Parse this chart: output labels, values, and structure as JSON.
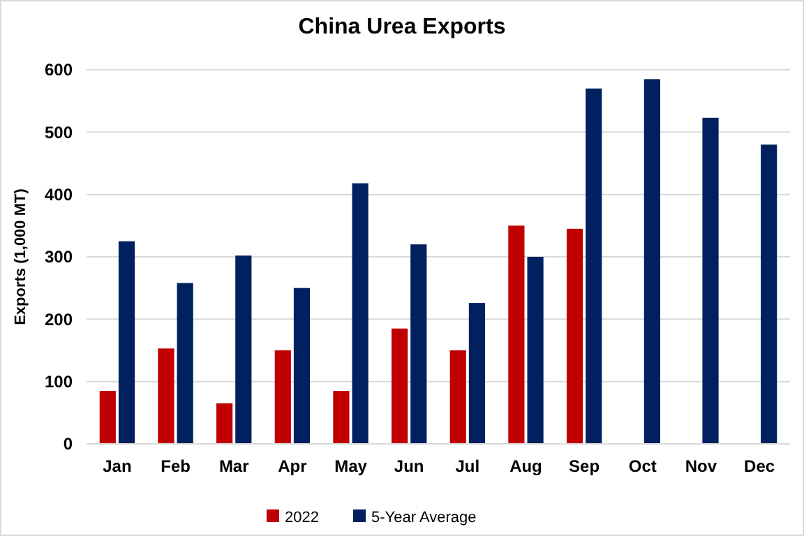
{
  "chart_data": {
    "type": "bar",
    "title": "China Urea Exports",
    "ylabel": "Exports (1,000 MT)",
    "categories": [
      "Jan",
      "Feb",
      "Mar",
      "Apr",
      "May",
      "Jun",
      "Jul",
      "Aug",
      "Sep",
      "Oct",
      "Nov",
      "Dec"
    ],
    "series": [
      {
        "name": "2022",
        "color": "#c00000",
        "values": [
          85,
          153,
          65,
          150,
          85,
          185,
          150,
          350,
          345,
          null,
          null,
          null
        ]
      },
      {
        "name": "5-Year Average",
        "color": "#002060",
        "values": [
          325,
          258,
          302,
          250,
          418,
          320,
          226,
          300,
          570,
          585,
          523,
          480
        ]
      }
    ],
    "ylim": [
      0,
      600
    ],
    "yticks": [
      0,
      100,
      200,
      300,
      400,
      500,
      600
    ],
    "grid": "y",
    "legend": "bottom"
  }
}
